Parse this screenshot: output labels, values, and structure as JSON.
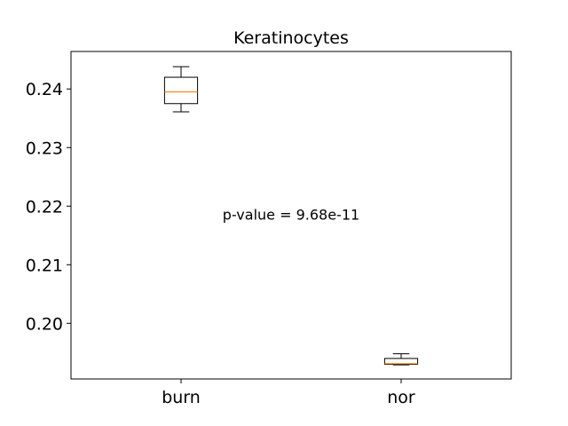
{
  "chart_data": {
    "type": "box",
    "title": "Keratinocytes",
    "xlabel": "",
    "ylabel": "",
    "categories": [
      "burn",
      "nor"
    ],
    "boxes": [
      {
        "name": "burn",
        "whisker_low": 0.2361,
        "q1": 0.2375,
        "median": 0.2395,
        "q3": 0.242,
        "whisker_high": 0.2438
      },
      {
        "name": "nor",
        "whisker_low": 0.1929,
        "q1": 0.193,
        "median": 0.1931,
        "q3": 0.194,
        "whisker_high": 0.1948
      }
    ],
    "ylim": [
      0.1905,
      0.2464
    ],
    "yticks": [
      0.2,
      0.21,
      0.22,
      0.23,
      0.24
    ],
    "ytick_labels": [
      "0.20",
      "0.21",
      "0.22",
      "0.23",
      "0.24"
    ],
    "annotation": {
      "text": "p-value = 9.68e-11",
      "x": 1.5,
      "y": 0.2186
    },
    "grid": false,
    "colors": {
      "box": "#000000",
      "median": "#ff7f0e"
    }
  }
}
